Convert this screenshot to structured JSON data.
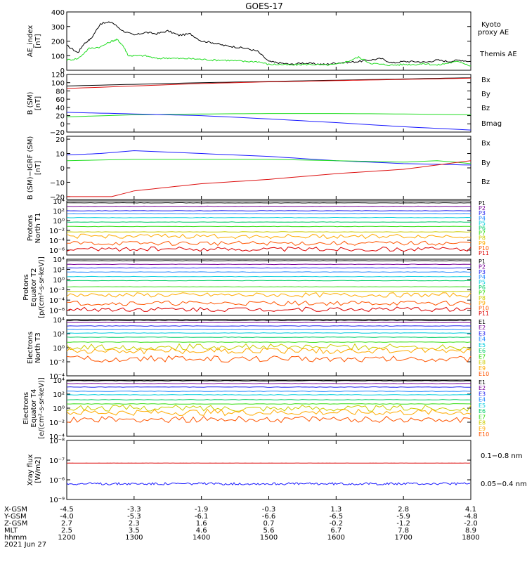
{
  "title": "GOES-17",
  "colors": {
    "black": "#000000",
    "green": "#22dd22",
    "blue": "#1a1aff",
    "red": "#dd1111",
    "p_colors": [
      "#000000",
      "#770099",
      "#2222ee",
      "#2288ff",
      "#00ccdd",
      "#00cc66",
      "#33dd11",
      "#cccc00",
      "#ffaa00",
      "#ff5500",
      "#dd0000"
    ],
    "e_colors": [
      "#000000",
      "#770099",
      "#2222ee",
      "#2288ff",
      "#00ccdd",
      "#00cc66",
      "#33dd11",
      "#cccc00",
      "#ffaa00",
      "#ff5500"
    ]
  },
  "chart_data": [
    {
      "type": "line",
      "panel": "ae",
      "ylabel": "AE_index\n[nT]",
      "yticks": [
        "400",
        "300",
        "200",
        "100",
        "0"
      ],
      "ylim": [
        0,
        400
      ],
      "legend": [
        {
          "name": "Kyoto\nproxy AE",
          "color": "green"
        },
        {
          "name": "Themis AE",
          "color": "black"
        }
      ],
      "series": [
        {
          "name": "Themis AE",
          "color": "black",
          "x": [
            1200,
            1210,
            1215,
            1222,
            1230,
            1240,
            1250,
            1300,
            1310,
            1320,
            1330,
            1340,
            1350,
            1400,
            1410,
            1420,
            1430,
            1440,
            1450,
            1500,
            1510,
            1520,
            1530,
            1540,
            1550,
            1600,
            1610,
            1620,
            1630,
            1640,
            1650,
            1700,
            1710,
            1720,
            1730,
            1740,
            1750,
            1800
          ],
          "y": [
            170,
            120,
            180,
            220,
            320,
            330,
            270,
            240,
            260,
            250,
            270,
            240,
            250,
            200,
            190,
            170,
            160,
            150,
            130,
            60,
            50,
            40,
            50,
            45,
            40,
            50,
            55,
            60,
            70,
            80,
            50,
            60,
            60,
            55,
            70,
            60,
            70,
            60
          ]
        },
        {
          "name": "Kyoto proxy AE",
          "color": "green",
          "x": [
            1200,
            1210,
            1220,
            1230,
            1240,
            1245,
            1250,
            1255,
            1300,
            1310,
            1320,
            1330,
            1340,
            1350,
            1400,
            1410,
            1420,
            1430,
            1440,
            1450,
            1500,
            1510,
            1520,
            1530,
            1540,
            1550,
            1600,
            1610,
            1620,
            1630,
            1640,
            1650,
            1700,
            1710,
            1720,
            1730,
            1740,
            1750,
            1800
          ],
          "y": [
            70,
            80,
            150,
            160,
            200,
            210,
            170,
            100,
            100,
            100,
            80,
            85,
            80,
            80,
            75,
            70,
            70,
            65,
            60,
            60,
            40,
            40,
            35,
            40,
            40,
            35,
            40,
            60,
            90,
            50,
            40,
            35,
            40,
            40,
            45,
            35,
            50,
            60,
            30
          ]
        }
      ]
    },
    {
      "type": "line",
      "panel": "bsm",
      "ylabel": "B (SM)\n[nT]",
      "yticks": [
        "120",
        "100",
        "80",
        "60",
        "40",
        "20",
        "0",
        "−20"
      ],
      "ylim": [
        -20,
        120
      ],
      "legend": [
        {
          "name": "Bx",
          "color": "blue"
        },
        {
          "name": "By",
          "color": "green"
        },
        {
          "name": "Bz",
          "color": "red"
        },
        {
          "name": "Bmag",
          "color": "black"
        }
      ],
      "series": [
        {
          "name": "Bmag",
          "color": "black",
          "x": [
            1200,
            1300,
            1400,
            1500,
            1600,
            1700,
            1800
          ],
          "y": [
            92,
            96,
            100,
            103,
            106,
            109,
            112
          ]
        },
        {
          "name": "Bz",
          "color": "red",
          "x": [
            1200,
            1300,
            1400,
            1500,
            1600,
            1700,
            1800
          ],
          "y": [
            86,
            92,
            98,
            102,
            105,
            108,
            111
          ]
        },
        {
          "name": "By",
          "color": "green",
          "x": [
            1200,
            1300,
            1400,
            1500,
            1600,
            1700,
            1800
          ],
          "y": [
            17,
            22,
            24,
            25,
            25,
            24,
            22
          ]
        },
        {
          "name": "Bx",
          "color": "blue",
          "x": [
            1200,
            1300,
            1400,
            1500,
            1600,
            1700,
            1800
          ],
          "y": [
            28,
            24,
            20,
            12,
            3,
            -7,
            -15
          ]
        }
      ]
    },
    {
      "type": "line",
      "panel": "bdiff",
      "ylabel": "B (SM)−IGRF (SM)\n[nT]",
      "yticks": [
        "20",
        "10",
        "0",
        "−10",
        "−20"
      ],
      "ylim": [
        -22,
        22
      ],
      "legend": [
        {
          "name": "Bx",
          "color": "blue"
        },
        {
          "name": "By",
          "color": "green"
        },
        {
          "name": "Bz",
          "color": "red"
        }
      ],
      "series": [
        {
          "name": "Bx",
          "color": "blue",
          "x": [
            1200,
            1230,
            1300,
            1330,
            1400,
            1500,
            1600,
            1700,
            1800
          ],
          "y": [
            9,
            10,
            12,
            11,
            10,
            8,
            5,
            3,
            2
          ]
        },
        {
          "name": "By",
          "color": "green",
          "x": [
            1200,
            1300,
            1400,
            1500,
            1600,
            1700,
            1730,
            1800
          ],
          "y": [
            5,
            6,
            6,
            6,
            5,
            4,
            5,
            3
          ]
        },
        {
          "name": "Bz",
          "color": "red",
          "x": [
            1200,
            1220,
            1240,
            1300,
            1400,
            1500,
            1600,
            1700,
            1800
          ],
          "y": [
            -20,
            -20,
            -20,
            -16,
            -11,
            -8,
            -4,
            -1,
            5
          ]
        }
      ]
    },
    {
      "type": "line",
      "panel": "pnt1",
      "ylabel": "Protons\nNorth T1",
      "yticks": [
        "10⁴",
        "10²",
        "10⁰",
        "10⁻²",
        "10⁻⁴",
        "10⁻⁶"
      ],
      "ylim": [
        -7,
        4
      ],
      "legend_names": [
        "P1",
        "P2",
        "P3",
        "P4",
        "P5",
        "P6",
        "P7",
        "P8",
        "P9",
        "P10",
        "P11"
      ],
      "levels_log10": [
        3.6,
        2.9,
        2.0,
        1.4,
        0.6,
        -0.3,
        -1.2,
        -2.3,
        -3.2,
        -4.6,
        -5.8
      ]
    },
    {
      "type": "line",
      "panel": "peqt2",
      "ylabel": "Protons\nEquator T2\n[p/(cm²-s-sr-keV)]",
      "yticks": [
        "10⁴",
        "10²",
        "10⁰",
        "10⁻²",
        "10⁻⁴",
        "10⁻⁶"
      ],
      "ylim": [
        -7,
        4
      ],
      "legend_names": [
        "P1",
        "P2",
        "P3",
        "P4",
        "P5",
        "P6",
        "P7",
        "P8",
        "P9",
        "P10",
        "P11"
      ],
      "levels_log10": [
        3.7,
        3.0,
        2.3,
        1.5,
        0.6,
        -0.2,
        -1.4,
        -2.3,
        -3.0,
        -4.6,
        -5.8
      ]
    },
    {
      "type": "line",
      "panel": "ent3",
      "ylabel": "Electrons\nNorth T3",
      "yticks": [
        "10⁴",
        "10²",
        "10⁰",
        "10⁻²",
        "10⁻⁴"
      ],
      "ylim": [
        -4,
        4
      ],
      "legend_names": [
        "E1",
        "E2",
        "E3",
        "E4",
        "E5",
        "E6",
        "E7",
        "E8",
        "E9",
        "E10"
      ],
      "levels_log10": [
        3.9,
        3.6,
        3.1,
        2.6,
        2.1,
        1.5,
        0.8,
        0.1,
        -0.4,
        -1.6
      ]
    },
    {
      "type": "line",
      "panel": "eeqt4",
      "ylabel": "Electrons\nEquator T4\n[e/(cm²-s-sr-keV)]",
      "yticks": [
        "10⁴",
        "10²",
        "10⁰",
        "10⁻²",
        "10⁻⁴"
      ],
      "ylim": [
        -4,
        4
      ],
      "legend_names": [
        "E1",
        "E2",
        "E3",
        "E4",
        "E5",
        "E6",
        "E7",
        "E8",
        "E9",
        "E10"
      ],
      "levels_log10": [
        3.9,
        3.5,
        3.0,
        2.4,
        1.9,
        1.2,
        0.6,
        0.0,
        -0.6,
        -1.6
      ]
    },
    {
      "type": "line",
      "panel": "xray",
      "ylabel": "Xray flux\n[W/m2]",
      "yticks": [
        "10⁻⁸",
        "10⁻⁷",
        "10⁻⁶",
        "10⁻⁹"
      ],
      "ylim": [
        -9,
        -6
      ],
      "legend": [
        {
          "name": "0.1−0.8 nm",
          "color": "red"
        },
        {
          "name": "0.05−0.4 nm",
          "color": "blue"
        }
      ],
      "series": [
        {
          "name": "0.1−0.8 nm",
          "color": "red",
          "level_log10": -7.15
        },
        {
          "name": "0.05−0.4 nm",
          "color": "blue",
          "level_log10": -8.2
        }
      ]
    }
  ],
  "footer": {
    "row_labels": [
      "X-GSM",
      "Y-GSM",
      "Z-GSM",
      "MLT",
      "hhmm",
      "2021 Jun 27"
    ],
    "columns": [
      [
        "-4.5",
        "-4.0",
        "2.7",
        "2.5",
        "1200"
      ],
      [
        "-3.3",
        "-5.3",
        "2.3",
        "3.5",
        "1300"
      ],
      [
        "-1.9",
        "-6.1",
        "1.6",
        "4.6",
        "1400"
      ],
      [
        "-0.3",
        "-6.6",
        "0.7",
        "5.6",
        "1500"
      ],
      [
        "1.3",
        "-6.5",
        "-0.2",
        "6.7",
        "1600"
      ],
      [
        "2.8",
        "-5.9",
        "-1.2",
        "7.8",
        "1700"
      ],
      [
        "4.1",
        "-4.8",
        "-2.0",
        "8.9",
        "1800"
      ]
    ]
  }
}
